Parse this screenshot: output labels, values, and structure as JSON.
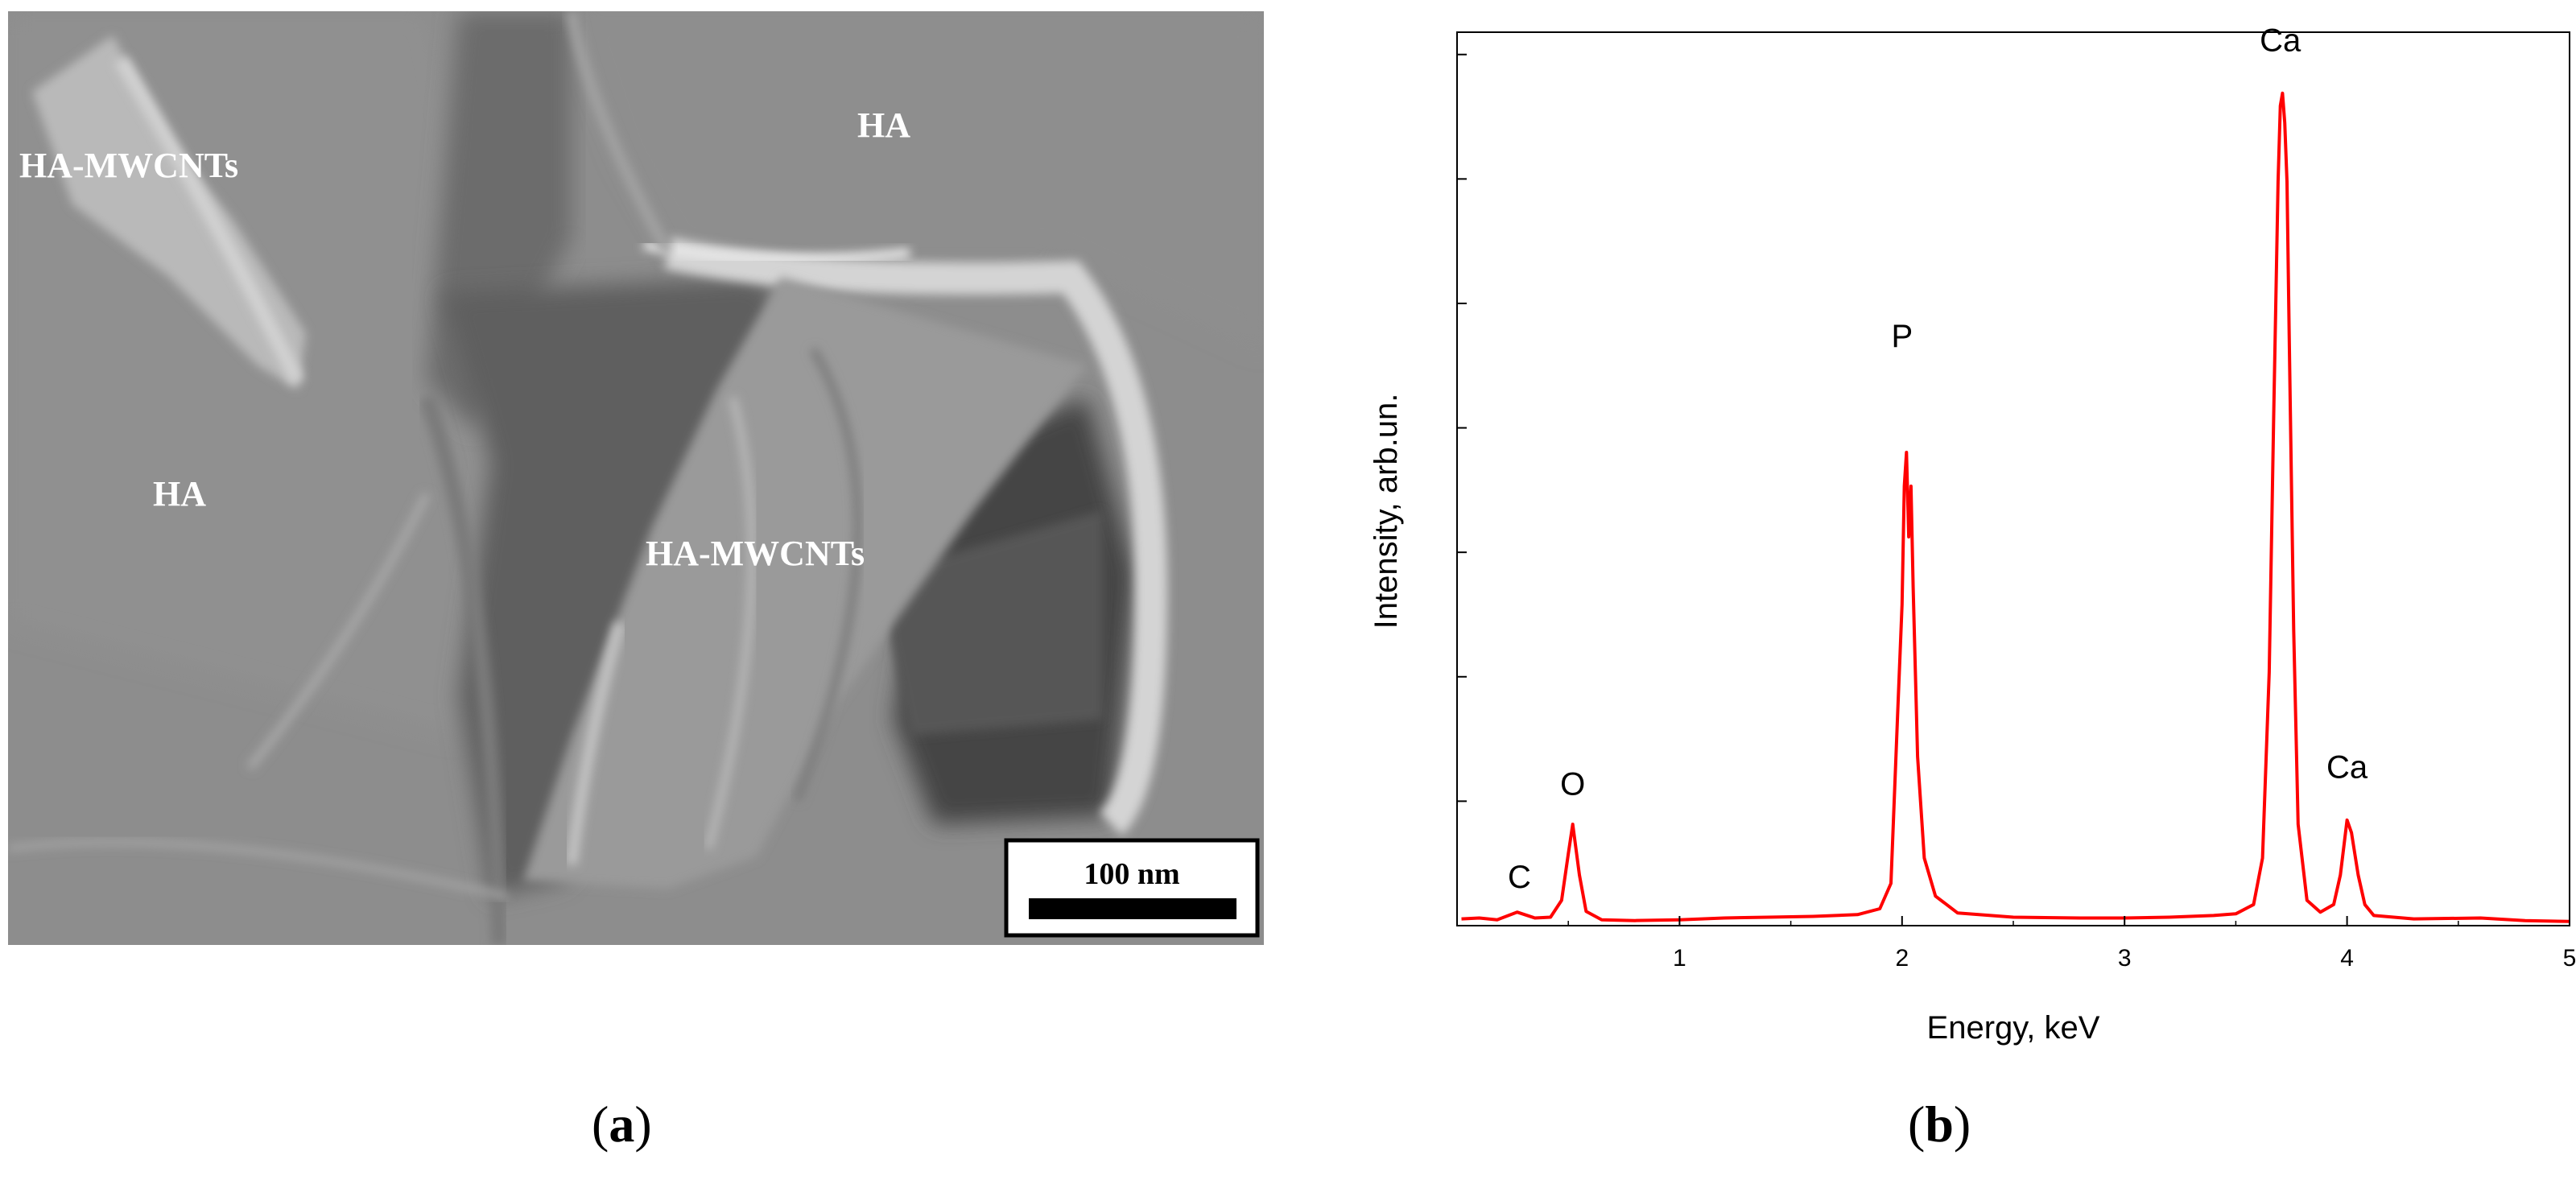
{
  "panel_a": {
    "caption_open": "(",
    "caption_letter": "a",
    "caption_close": ")",
    "labels": {
      "ha_mwcnts_top": "HA-MWCNTs",
      "ha_top": "HA",
      "ha_left": "HA",
      "ha_mwcnts_center": "HA-MWCNTs"
    },
    "scale_bar": "100 nm"
  },
  "panel_b": {
    "caption_open": "(",
    "caption_letter": "b",
    "caption_close": ")",
    "chart_data": {
      "type": "line",
      "xlabel": "Energy, keV",
      "ylabel": "Intensity, arb.un.",
      "xlim": [
        0,
        5
      ],
      "ylim": [
        0,
        100
      ],
      "x_ticks": [
        1,
        2,
        3,
        4,
        5
      ],
      "y_tick_count": 7,
      "grid": false,
      "series": [
        {
          "color": "#ff0000",
          "points": [
            [
              0.02,
              0.8
            ],
            [
              0.1,
              0.9
            ],
            [
              0.18,
              0.7
            ],
            [
              0.27,
              1.6
            ],
            [
              0.35,
              0.9
            ],
            [
              0.42,
              1.0
            ],
            [
              0.47,
              3.0
            ],
            [
              0.5,
              8.5
            ],
            [
              0.52,
              12.0
            ],
            [
              0.55,
              6.0
            ],
            [
              0.58,
              1.7
            ],
            [
              0.65,
              0.7
            ],
            [
              0.8,
              0.6
            ],
            [
              1.0,
              0.7
            ],
            [
              1.2,
              0.9
            ],
            [
              1.4,
              1.0
            ],
            [
              1.6,
              1.1
            ],
            [
              1.8,
              1.3
            ],
            [
              1.9,
              2.0
            ],
            [
              1.95,
              5.0
            ],
            [
              1.98,
              25.0
            ],
            [
              2.0,
              38.0
            ],
            [
              2.01,
              52.0
            ],
            [
              2.02,
              56.0
            ],
            [
              2.03,
              46.0
            ],
            [
              2.04,
              52.0
            ],
            [
              2.05,
              40.0
            ],
            [
              2.07,
              20.0
            ],
            [
              2.1,
              8.0
            ],
            [
              2.15,
              3.5
            ],
            [
              2.25,
              1.5
            ],
            [
              2.5,
              1.0
            ],
            [
              2.8,
              0.9
            ],
            [
              3.0,
              0.9
            ],
            [
              3.2,
              1.0
            ],
            [
              3.4,
              1.2
            ],
            [
              3.5,
              1.4
            ],
            [
              3.58,
              2.5
            ],
            [
              3.62,
              8.0
            ],
            [
              3.65,
              30.0
            ],
            [
              3.67,
              60.0
            ],
            [
              3.69,
              88.0
            ],
            [
              3.7,
              97.0
            ],
            [
              3.71,
              98.5
            ],
            [
              3.72,
              95.0
            ],
            [
              3.73,
              88.0
            ],
            [
              3.74,
              70.0
            ],
            [
              3.76,
              35.0
            ],
            [
              3.78,
              12.0
            ],
            [
              3.82,
              3.0
            ],
            [
              3.88,
              1.6
            ],
            [
              3.94,
              2.5
            ],
            [
              3.97,
              6.0
            ],
            [
              4.0,
              12.5
            ],
            [
              4.02,
              11.0
            ],
            [
              4.05,
              6.0
            ],
            [
              4.08,
              2.5
            ],
            [
              4.12,
              1.2
            ],
            [
              4.3,
              0.8
            ],
            [
              4.6,
              0.9
            ],
            [
              4.8,
              0.6
            ],
            [
              5.0,
              0.5
            ]
          ]
        }
      ],
      "annotations": [
        {
          "text": "C",
          "x": 0.28,
          "y": 4.5
        },
        {
          "text": "O",
          "x": 0.52,
          "y": 15.5
        },
        {
          "text": "P",
          "x": 2.0,
          "y": 68.5
        },
        {
          "text": "Ca",
          "x": 3.7,
          "y": 103.5
        },
        {
          "text": "Ca",
          "x": 4.0,
          "y": 17.5
        }
      ]
    }
  }
}
